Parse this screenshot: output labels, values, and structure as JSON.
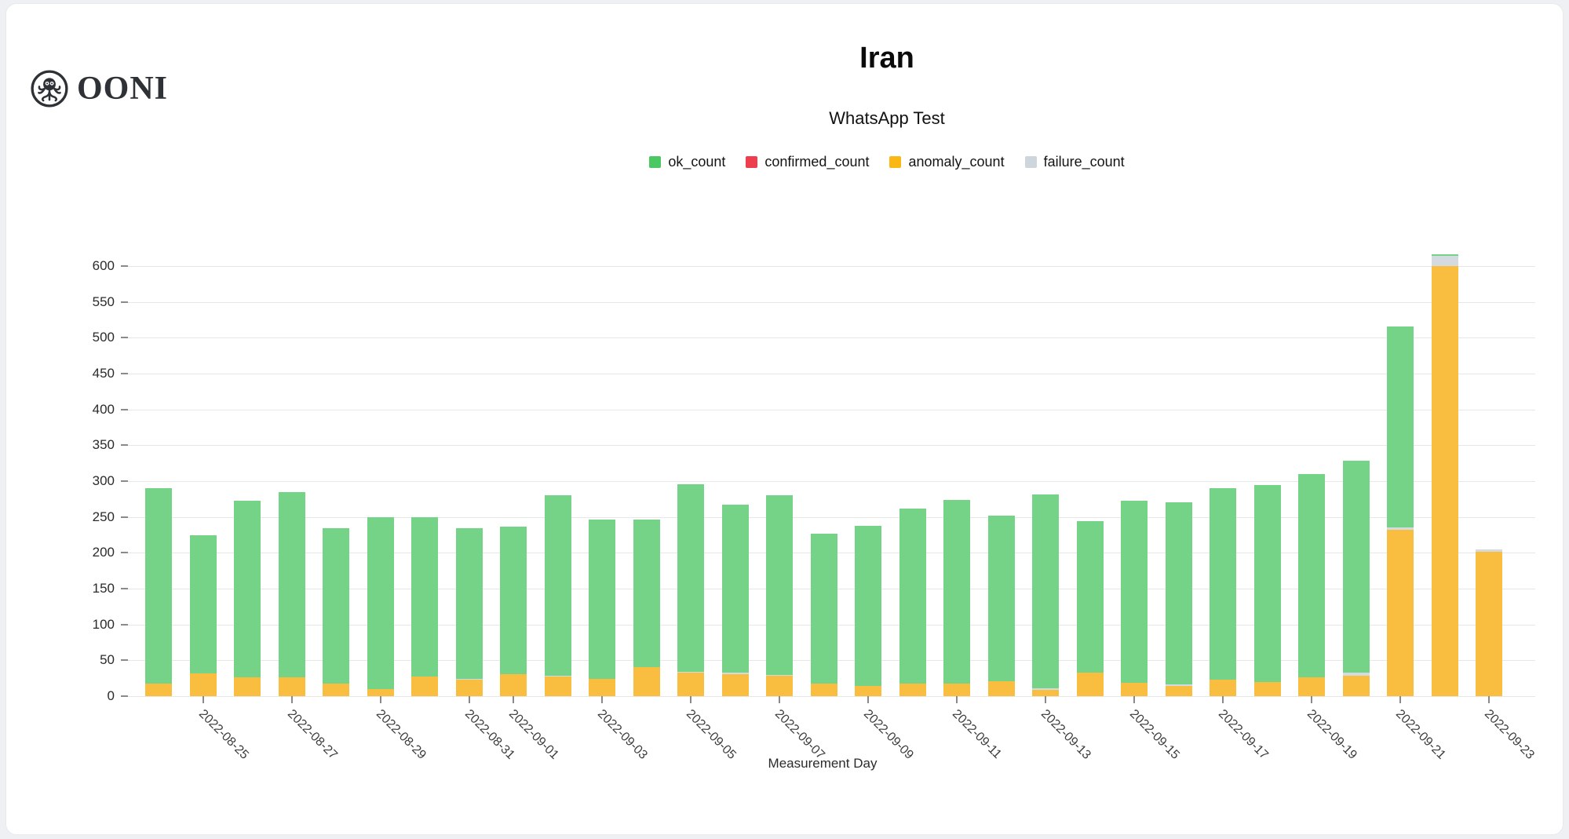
{
  "logo": {
    "text": "OONI"
  },
  "chart_data": {
    "type": "bar",
    "stacked": true,
    "title": "Iran",
    "subtitle": "WhatsApp Test",
    "xlabel": "Measurement Day",
    "ylabel": "",
    "ylim": [
      0,
      600
    ],
    "y_ticks": [
      0,
      50,
      100,
      150,
      200,
      250,
      300,
      350,
      400,
      450,
      500,
      550,
      600
    ],
    "grid": "horizontal",
    "legend_position": "top-center",
    "categories": [
      "2022-08-24",
      "2022-08-25",
      "2022-08-26",
      "2022-08-27",
      "2022-08-28",
      "2022-08-29",
      "2022-08-30",
      "2022-08-31",
      "2022-09-01",
      "2022-09-02",
      "2022-09-03",
      "2022-09-04",
      "2022-09-05",
      "2022-09-06",
      "2022-09-07",
      "2022-09-08",
      "2022-09-09",
      "2022-09-10",
      "2022-09-11",
      "2022-09-12",
      "2022-09-13",
      "2022-09-14",
      "2022-09-15",
      "2022-09-16",
      "2022-09-17",
      "2022-09-18",
      "2022-09-19",
      "2022-09-20",
      "2022-09-21",
      "2022-09-22",
      "2022-09-23"
    ],
    "x_tick_labels": [
      "2022-08-25",
      "2022-08-27",
      "2022-08-29",
      "2022-08-31",
      "2022-09-01",
      "2022-09-03",
      "2022-09-05",
      "2022-09-07",
      "2022-09-09",
      "2022-09-11",
      "2022-09-13",
      "2022-09-15",
      "2022-09-17",
      "2022-09-19",
      "2022-09-21",
      "2022-09-23"
    ],
    "stack_order_bottom_to_top": [
      "anomaly_count",
      "confirmed_count",
      "failure_count",
      "ok_count"
    ],
    "series": [
      {
        "name": "ok_count",
        "color": "#4ac862",
        "bar_color": "#74d386",
        "values": [
          273,
          192,
          247,
          259,
          217,
          240,
          223,
          210,
          206,
          251,
          222,
          206,
          262,
          234,
          250,
          209,
          224,
          244,
          256,
          231,
          270,
          211,
          254,
          254,
          267,
          274,
          284,
          295,
          281,
          2,
          0
        ]
      },
      {
        "name": "confirmed_count",
        "color": "#ee3d4c",
        "bar_color": "#f16570",
        "values": [
          0,
          0,
          0,
          0,
          0,
          0,
          0,
          0,
          0,
          0,
          0,
          0,
          0,
          0,
          0,
          0,
          0,
          0,
          0,
          0,
          0,
          0,
          0,
          0,
          0,
          0,
          0,
          0,
          0,
          0,
          0
        ]
      },
      {
        "name": "anomaly_count",
        "color": "#fbb713",
        "bar_color": "#f9bd3f",
        "values": [
          17,
          32,
          26,
          26,
          17,
          10,
          27,
          23,
          31,
          27,
          24,
          40,
          33,
          31,
          29,
          18,
          14,
          18,
          18,
          21,
          9,
          33,
          19,
          14,
          23,
          20,
          26,
          28,
          232,
          600,
          201
        ]
      },
      {
        "name": "failure_count",
        "color": "#ccd6dc",
        "bar_color": "#d3dbe0",
        "values": [
          0,
          0,
          0,
          0,
          0,
          0,
          0,
          1,
          0,
          2,
          0,
          0,
          1,
          2,
          1,
          0,
          0,
          0,
          0,
          0,
          2,
          0,
          0,
          2,
          0,
          0,
          0,
          5,
          3,
          14,
          4
        ]
      }
    ]
  }
}
